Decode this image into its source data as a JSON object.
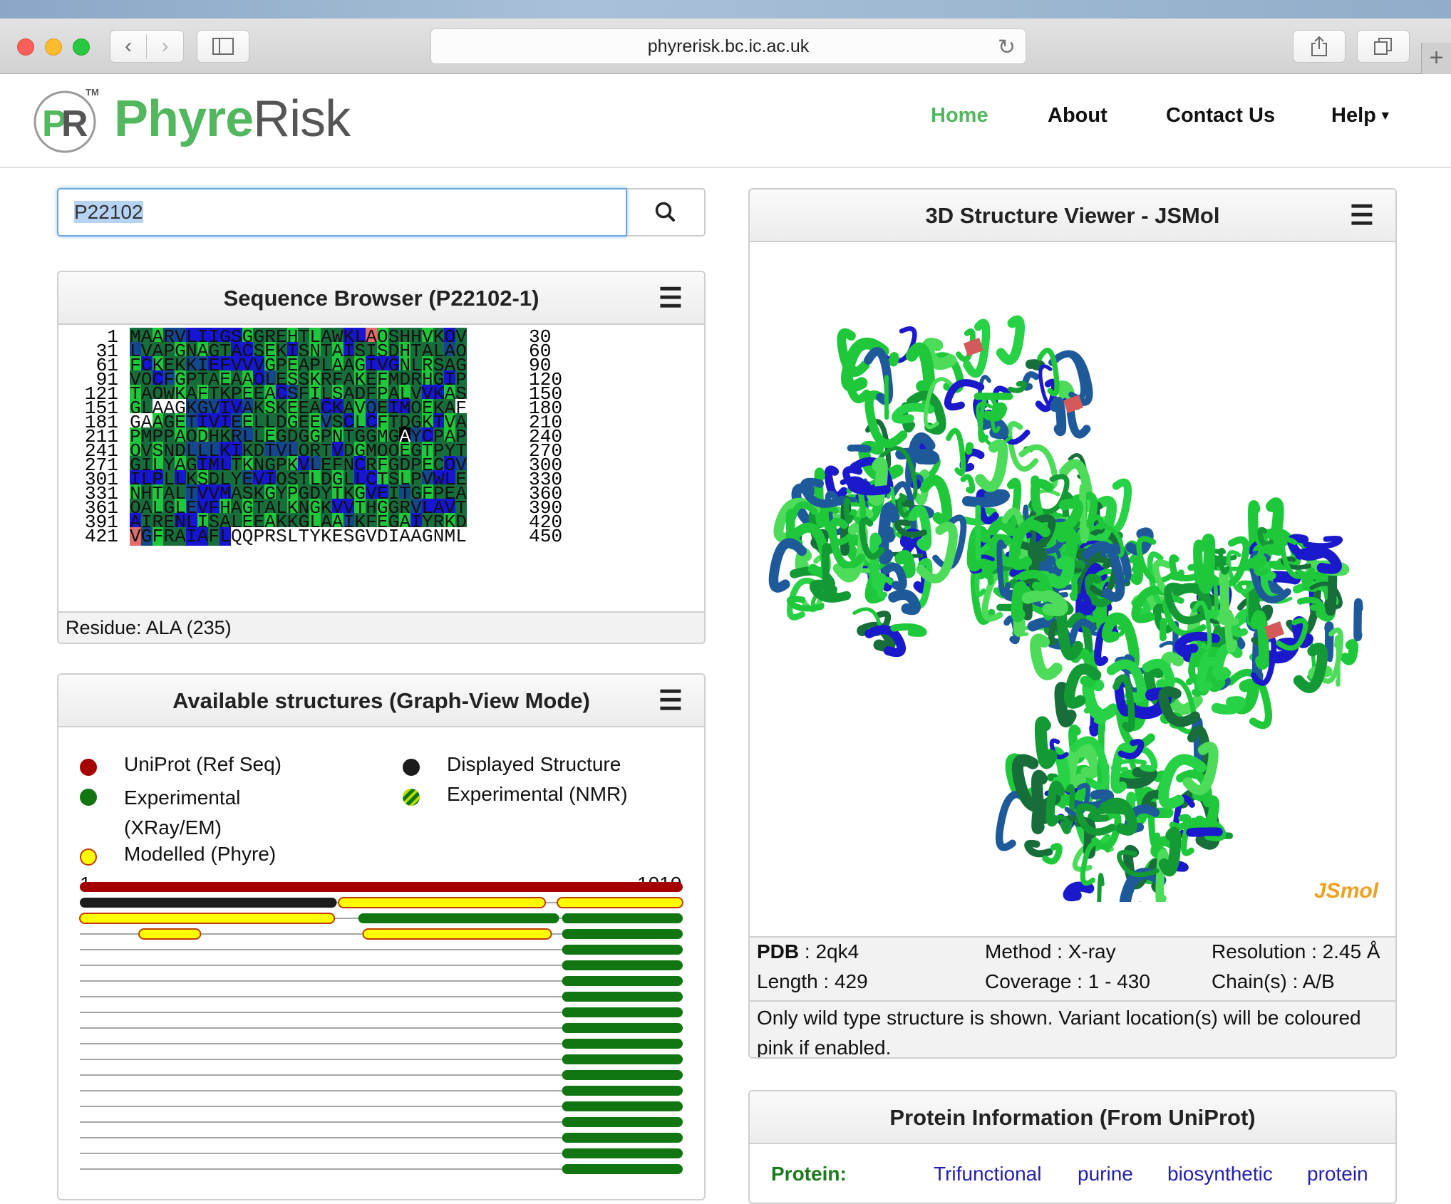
{
  "browser": {
    "url": "phyrerisk.bc.ic.ac.uk"
  },
  "site": {
    "brand_part1": "Phyre",
    "brand_part2": "Risk",
    "logo_letters": "PR",
    "trademark": "TM",
    "nav": [
      {
        "label": "Home",
        "active": true
      },
      {
        "label": "About",
        "active": false
      },
      {
        "label": "Contact Us",
        "active": false
      },
      {
        "label": "Help",
        "active": false
      }
    ]
  },
  "search": {
    "value": "P22102"
  },
  "sequence_browser": {
    "title": "Sequence Browser (P22102-1)",
    "rows": [
      {
        "start": "1",
        "end": "30",
        "seq": "MAARVLIIGSGGREHTLAWKLAQSHHVKQV",
        "colors": "gggmmbbbbbgggggggggbbpggggggbg"
      },
      {
        "start": "31",
        "end": "60",
        "seq": "LVAPGNAGTACSEKISNTAISISDHTALAQ",
        "colors": "mggggggggbbgggbggggbggggggggmg"
      },
      {
        "start": "61",
        "end": "90",
        "seq": "FCKEKKIEFVVVGPEAPLAAGIVGNLRSAG",
        "colors": "gbgggmmbbbbbgggggggggbbbgggggg"
      },
      {
        "start": "91",
        "end": "120",
        "seq": "VQCFGPTAEAAQLESSKRFAKEFMDRHGIP",
        "colors": "ggbmgggggggbmgggggggggggggggbg"
      },
      {
        "start": "121",
        "end": "150",
        "seq": "TAQWKAFTKPEEACSFILSADFPALVVKAS",
        "colors": "gggggggggggggbmgggggggggggbbgg"
      },
      {
        "start": "151",
        "end": "180",
        "seq": "GLAAGKGVIVAKSKEEACKAVQEIMQEKAF",
        "colors": "ggwwwmmmbbmggggggbbggmgbbggggw"
      },
      {
        "start": "181",
        "end": "210",
        "seq": "GAAGETIVIEELLDGEEVSCLCFTDGKTVA",
        "colors": "wwgggmbbbmgggggggmgbgbgggggbgg"
      },
      {
        "start": "211",
        "end": "240",
        "seq": "PMPPAQDHKRLLEGDGGPNTGGMGAYCPAP",
        "colors": "gggggggggmmgggggggggggggkmbggg"
      },
      {
        "start": "241",
        "end": "270",
        "seq": "QVSNDLLLKIKDTVLQRTVDGMQQEGTPYT",
        "colors": "gggggmmmbbggmmmgggbggggggggggg"
      },
      {
        "start": "271",
        "end": "300",
        "seq": "GILYAGIMLTKNGPKVLEFNCRFGDPECQV",
        "colors": "ggggggbbbggggggbmgggbgggggggbm"
      },
      {
        "start": "301",
        "end": "330",
        "seq": "ILPLLKSDLYEVIQSTLDGLLCTSLPVWLE",
        "colors": "bbbgbgggggmbbgggggggbbggggmbbg"
      },
      {
        "start": "331",
        "end": "360",
        "seq": "NHTALTVVMASKGYPGDYTKGVEITGFPEA",
        "colors": "gggggmbbbggggggggggggbbgmggggg"
      },
      {
        "start": "361",
        "end": "390",
        "seq": "QALGLEVFHAGTALKNGKVVTHGGRVLAVT",
        "colors": "gggggmbbggggggggggbbgggggmbbbg"
      },
      {
        "start": "391",
        "end": "420",
        "seq": "AIRENLISALEEAKKGLAAIKFEGAIYRKD",
        "colors": "bgggbbgggggggggggggmgggggbgggg"
      },
      {
        "start": "421",
        "end": "450",
        "seq": "VGFRAIAFLQQPRSLTYKESGVDIAAGNML",
        "colors": "pmgggbbgbwwwwwwwwwwwwwwwwwwwww"
      }
    ],
    "footer": "Residue: ALA (235)"
  },
  "structures": {
    "title": "Available structures (Graph-View Mode)",
    "legend": [
      {
        "label": "UniProt (Ref Seq)",
        "color": "#a50000"
      },
      {
        "label": "Displayed Structure",
        "color": "#1c1c1c"
      },
      {
        "label": "Experimental (XRay/EM)",
        "color": "#117611"
      },
      {
        "label": "Experimental (NMR)",
        "color": "#117611"
      },
      {
        "label": "Modelled (Phyre)",
        "color": "#ffff00"
      }
    ],
    "range_start": "1",
    "range_end": "1010",
    "length": 1010,
    "tracks": [
      [
        {
          "from": 1,
          "to": 1010,
          "kind": "uniprot"
        }
      ],
      [
        {
          "from": 1,
          "to": 431,
          "kind": "displayed"
        },
        {
          "from": 434,
          "to": 780,
          "kind": "model"
        },
        {
          "from": 800,
          "to": 1010,
          "kind": "model"
        }
      ],
      [
        {
          "from": 1,
          "to": 427,
          "kind": "model"
        },
        {
          "from": 467,
          "to": 803,
          "kind": "experimental"
        },
        {
          "from": 808,
          "to": 1010,
          "kind": "experimental"
        }
      ],
      [
        {
          "from": 100,
          "to": 203,
          "kind": "model"
        },
        {
          "from": 475,
          "to": 790,
          "kind": "model"
        },
        {
          "from": 808,
          "to": 1010,
          "kind": "experimental"
        }
      ],
      [
        {
          "from": 808,
          "to": 1010,
          "kind": "experimental"
        }
      ],
      [
        {
          "from": 808,
          "to": 1010,
          "kind": "experimental"
        }
      ],
      [
        {
          "from": 808,
          "to": 1010,
          "kind": "experimental"
        }
      ],
      [
        {
          "from": 808,
          "to": 1010,
          "kind": "experimental"
        }
      ],
      [
        {
          "from": 808,
          "to": 1010,
          "kind": "experimental"
        }
      ],
      [
        {
          "from": 808,
          "to": 1010,
          "kind": "experimental"
        }
      ],
      [
        {
          "from": 808,
          "to": 1010,
          "kind": "experimental"
        }
      ],
      [
        {
          "from": 808,
          "to": 1010,
          "kind": "experimental"
        }
      ],
      [
        {
          "from": 808,
          "to": 1010,
          "kind": "experimental"
        }
      ],
      [
        {
          "from": 808,
          "to": 1010,
          "kind": "experimental"
        }
      ],
      [
        {
          "from": 808,
          "to": 1010,
          "kind": "experimental"
        }
      ],
      [
        {
          "from": 808,
          "to": 1010,
          "kind": "experimental"
        }
      ],
      [
        {
          "from": 808,
          "to": 1010,
          "kind": "experimental"
        }
      ],
      [
        {
          "from": 808,
          "to": 1010,
          "kind": "experimental"
        }
      ],
      [
        {
          "from": 808,
          "to": 1010,
          "kind": "experimental"
        }
      ]
    ]
  },
  "viewer": {
    "title": "3D Structure Viewer - JSMol",
    "watermark": "JSmol",
    "pdb_label": "PDB",
    "pdb_value": " : 2qk4",
    "method": "Method : X-ray",
    "resolution": "Resolution : 2.45 Å",
    "length": "Length : 429",
    "coverage": "Coverage : 1 - 430",
    "chains": "Chain(s) : A/B",
    "note": "Only wild type structure is shown. Variant location(s) will be coloured pink if enabled."
  },
  "protein_info": {
    "title": "Protein Information (From UniProt)",
    "protein_label": "Protein:",
    "name_words": [
      "Trifunctional",
      "purine",
      "biosynthetic",
      "protein"
    ]
  },
  "colors": {
    "accent_green": "#52b75f",
    "uniprot_red": "#a50000",
    "experimental_green": "#117611",
    "model_yellow": "#ffff00",
    "displayed_black": "#1c1c1c",
    "link_blue": "#2320b0"
  }
}
